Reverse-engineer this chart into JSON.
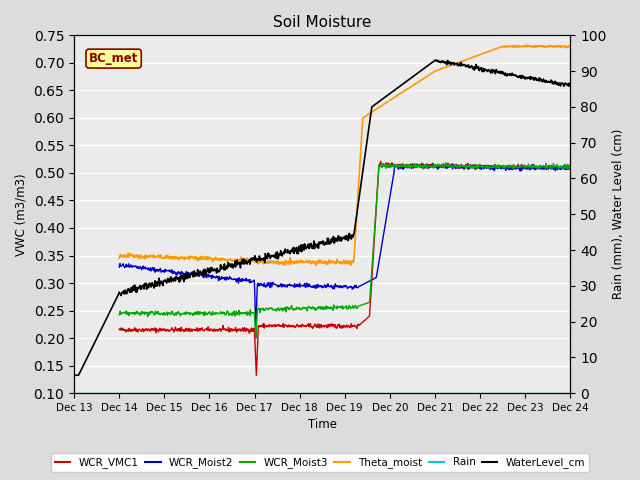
{
  "title": "Soil Moisture",
  "xlabel": "Time",
  "ylabel_left": "VWC (m3/m3)",
  "ylabel_right": "Rain (mm), Water Level (cm)",
  "ylim_left": [
    0.1,
    0.75
  ],
  "ylim_right": [
    0,
    100
  ],
  "yticks_left": [
    0.1,
    0.15,
    0.2,
    0.25,
    0.3,
    0.35,
    0.4,
    0.45,
    0.5,
    0.55,
    0.6,
    0.65,
    0.7,
    0.75
  ],
  "yticks_right": [
    0,
    10,
    20,
    30,
    40,
    50,
    60,
    70,
    80,
    90,
    100
  ],
  "background_color": "#dcdcdc",
  "plot_bg_color": "#ebebeb",
  "annotation_text": "BC_met",
  "annotation_bg": "#ffff99",
  "annotation_border": "#8B0000",
  "legend_entries": [
    "WCR_VMC1",
    "WCR_Moist2",
    "WCR_Moist3",
    "Theta_moist",
    "Rain",
    "WaterLevel_cm"
  ],
  "legend_colors": [
    "#cc0000",
    "#0000cc",
    "#00aa00",
    "#ff9900",
    "#00cccc",
    "#000000"
  ],
  "line_colors": {
    "WCR_VMC1": "#cc0000",
    "WCR_Moist2": "#0000cc",
    "WCR_Moist3": "#00aa00",
    "Theta_moist": "#ff9900",
    "Rain": "#00cccc",
    "WaterLevel_cm": "#000000"
  }
}
